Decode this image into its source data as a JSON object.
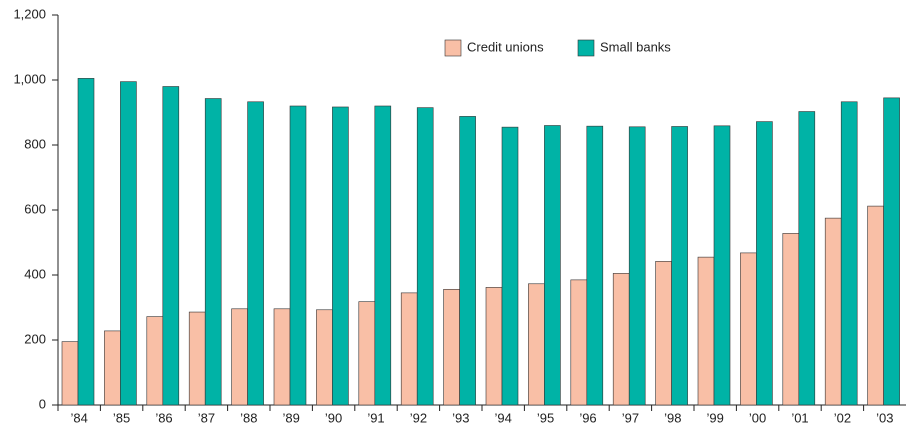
{
  "chart_data": {
    "type": "bar",
    "categories": [
      "’84",
      "’85",
      "’86",
      "’87",
      "’88",
      "’89",
      "’90",
      "’91",
      "’92",
      "’93",
      "’94",
      "’95",
      "’96",
      "’97",
      "’98",
      "’99",
      "’00",
      "’01",
      "’02",
      "’03"
    ],
    "series": [
      {
        "name": "Credit unions",
        "color": "#f9bfa6",
        "values": [
          195,
          228,
          272,
          286,
          296,
          296,
          293,
          318,
          345,
          356,
          362,
          373,
          385,
          405,
          442,
          455,
          468,
          528,
          575,
          612
        ]
      },
      {
        "name": "Small banks",
        "color": "#00b3a6",
        "values": [
          1005,
          995,
          980,
          943,
          933,
          920,
          917,
          920,
          915,
          888,
          855,
          860,
          858,
          856,
          857,
          859,
          872,
          903,
          933,
          945
        ]
      }
    ],
    "ylim": [
      0,
      1200
    ],
    "yticks": [
      0,
      200,
      400,
      600,
      800,
      {
        "value": 1000,
        "label": "1,000"
      },
      {
        "value": 1200,
        "label": "1,200"
      }
    ],
    "legend": "top-center"
  }
}
